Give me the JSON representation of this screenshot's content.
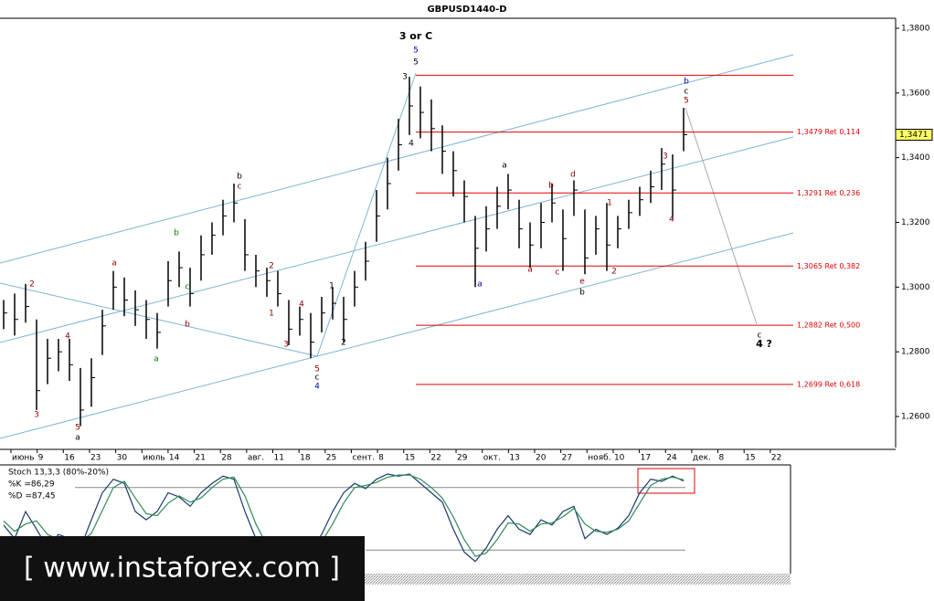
{
  "chart_data": {
    "type": "ohlc",
    "title": "GBPUSD1440-D",
    "x_labels": [
      "июнь",
      "9",
      "16",
      "23",
      "30",
      "июль",
      "14",
      "21",
      "28",
      "авг.",
      "11",
      "18",
      "25",
      "сент.",
      "8",
      "15",
      "22",
      "29",
      "окт.",
      "13",
      "20",
      "27",
      "нояб.",
      "10",
      "17",
      "24",
      "дек.",
      "8",
      "15",
      "22"
    ],
    "high": [
      1.296,
      1.298,
      1.301,
      1.29,
      1.284,
      1.284,
      1.284,
      1.275,
      1.278,
      1.293,
      1.305,
      1.303,
      1.299,
      1.296,
      1.292,
      1.308,
      1.311,
      1.306,
      1.316,
      1.32,
      1.327,
      1.332,
      1.321,
      1.31,
      1.306,
      1.305,
      1.296,
      1.294,
      1.292,
      1.297,
      1.3,
      1.297,
      1.305,
      1.314,
      1.33,
      1.34,
      1.352,
      1.365,
      1.362,
      1.358,
      1.35,
      1.342,
      1.333,
      1.322,
      1.325,
      1.331,
      1.335,
      1.327,
      1.32,
      1.326,
      1.332,
      1.324,
      1.333,
      1.324,
      1.322,
      1.326,
      1.322,
      1.327,
      1.331,
      1.336,
      1.343,
      1.341,
      1.3554
    ],
    "low": [
      1.287,
      1.285,
      1.289,
      1.262,
      1.27,
      1.274,
      1.271,
      1.257,
      1.263,
      1.279,
      1.293,
      1.291,
      1.288,
      1.284,
      1.281,
      1.294,
      1.3,
      1.294,
      1.302,
      1.31,
      1.316,
      1.32,
      1.305,
      1.3,
      1.297,
      1.294,
      1.282,
      1.285,
      1.278,
      1.286,
      1.29,
      1.283,
      1.294,
      1.302,
      1.314,
      1.324,
      1.336,
      1.347,
      1.346,
      1.342,
      1.335,
      1.328,
      1.32,
      1.3,
      1.311,
      1.318,
      1.324,
      1.312,
      1.306,
      1.312,
      1.32,
      1.305,
      1.322,
      1.304,
      1.31,
      1.305,
      1.312,
      1.318,
      1.322,
      1.326,
      1.33,
      1.321,
      1.342
    ],
    "close": [
      1.292,
      1.29,
      1.294,
      1.268,
      1.278,
      1.28,
      1.276,
      1.262,
      1.272,
      1.288,
      1.3,
      1.296,
      1.293,
      1.29,
      1.286,
      1.302,
      1.306,
      1.298,
      1.31,
      1.316,
      1.322,
      1.326,
      1.31,
      1.305,
      1.302,
      1.298,
      1.287,
      1.29,
      1.283,
      1.292,
      1.295,
      1.29,
      1.3,
      1.308,
      1.322,
      1.332,
      1.344,
      1.356,
      1.354,
      1.349,
      1.342,
      1.336,
      1.328,
      1.312,
      1.318,
      1.325,
      1.33,
      1.318,
      1.313,
      1.32,
      1.326,
      1.315,
      1.33,
      1.309,
      1.318,
      1.313,
      1.318,
      1.323,
      1.327,
      1.331,
      1.338,
      1.33,
      1.3471
    ],
    "last_price_label": "1,3471",
    "ylim": [
      1.2504,
      1.3831
    ],
    "yticks": [
      {
        "value": 1.38,
        "label": "1,3800"
      },
      {
        "value": 1.36,
        "label": "1,3600"
      },
      {
        "value": 1.34,
        "label": "1,3400"
      },
      {
        "value": 1.32,
        "label": "1,3200"
      },
      {
        "value": 1.3,
        "label": "1,3000"
      },
      {
        "value": 1.28,
        "label": "1,2800"
      },
      {
        "value": 1.26,
        "label": "1,2600"
      }
    ],
    "levels": [
      {
        "value": 1.3655,
        "label": null
      },
      {
        "value": 1.3479,
        "label": "1,3479 Ret 0,114"
      },
      {
        "value": 1.3291,
        "label": "1,3291 Ret 0,236"
      },
      {
        "value": 1.3065,
        "label": "1,3065 Ret 0,382"
      },
      {
        "value": 1.2882,
        "label": "1,2882 Ret 0,500"
      },
      {
        "value": 1.2699,
        "label": "1,2699 Ret 0,618"
      }
    ],
    "level_color": "#e00000",
    "annotations": [
      {
        "text": "3 or C",
        "color": "#000000"
      },
      {
        "text": "5",
        "color": "#0000cc"
      },
      {
        "text": "5",
        "color": "#000000"
      },
      {
        "text": "3",
        "color": "#000000"
      },
      {
        "text": "4",
        "color": "#000000"
      },
      {
        "text": "2",
        "color": "#8b0000"
      },
      {
        "text": "3",
        "color": "#8b0000"
      },
      {
        "text": "4",
        "color": "#8b0000"
      },
      {
        "text": "5",
        "color": "#8b0000"
      },
      {
        "text": "a",
        "color": "#000000"
      },
      {
        "text": "a",
        "color": "#8b0000"
      },
      {
        "text": "b",
        "color": "#008000"
      },
      {
        "text": "c",
        "color": "#008000"
      },
      {
        "text": "b",
        "color": "#8b0000"
      },
      {
        "text": "a",
        "color": "#008000"
      },
      {
        "text": "b",
        "color": "#000000"
      },
      {
        "text": "c",
        "color": "#8b0000"
      },
      {
        "text": "2",
        "color": "#8b0000"
      },
      {
        "text": "1",
        "color": "#8b0000"
      },
      {
        "text": "3",
        "color": "#8b0000"
      },
      {
        "text": "4",
        "color": "#8b0000"
      },
      {
        "text": "5",
        "color": "#8b0000"
      },
      {
        "text": "c",
        "color": "#000000"
      },
      {
        "text": "4",
        "color": "#0000cc"
      },
      {
        "text": "1",
        "color": "#000000"
      },
      {
        "text": "2",
        "color": "#000000"
      },
      {
        "text": "a",
        "color": "#000000"
      },
      {
        "text": "a",
        "color": "#0000cc"
      },
      {
        "text": "a",
        "color": "#8b0000"
      },
      {
        "text": "b",
        "color": "#8b0000"
      },
      {
        "text": "c",
        "color": "#8b0000"
      },
      {
        "text": "d",
        "color": "#8b0000"
      },
      {
        "text": "e",
        "color": "#8b0000"
      },
      {
        "text": "b",
        "color": "#000000"
      },
      {
        "text": "1",
        "color": "#8b0000"
      },
      {
        "text": "2",
        "color": "#8b0000"
      },
      {
        "text": "3",
        "color": "#8b0000"
      },
      {
        "text": "4",
        "color": "#8b0000"
      },
      {
        "text": "b",
        "color": "#0000cc"
      },
      {
        "text": "c",
        "color": "#000000"
      },
      {
        "text": "5",
        "color": "#8b0000"
      },
      {
        "text": "c",
        "color": "#000000"
      },
      {
        "text": "4 ?",
        "color": "#000000"
      }
    ],
    "stochastic": {
      "title": "Stoch 13,3,3 (80%-20%)",
      "k_label": "%K =86,29",
      "d_label": "%D =87,45",
      "ylim": [
        0,
        100
      ],
      "levels": [
        80,
        20
      ],
      "k": [
        44,
        31,
        57,
        40,
        22,
        35,
        31,
        22,
        49,
        75,
        88,
        84,
        57,
        49,
        57,
        75,
        71,
        62,
        75,
        84,
        91,
        88,
        57,
        31,
        18,
        13,
        9,
        13,
        22,
        35,
        57,
        75,
        84,
        79,
        88,
        93,
        91,
        93,
        84,
        75,
        66,
        40,
        18,
        9,
        22,
        40,
        53,
        40,
        35,
        49,
        44,
        57,
        62,
        31,
        40,
        35,
        41,
        53,
        75,
        88,
        86,
        91,
        86.29
      ],
      "d": [
        48,
        38,
        45,
        48,
        35,
        30,
        32,
        28,
        36,
        58,
        80,
        86,
        70,
        55,
        53,
        65,
        72,
        66,
        70,
        80,
        88,
        90,
        72,
        45,
        25,
        16,
        11,
        12,
        18,
        28,
        45,
        65,
        80,
        82,
        85,
        90,
        92,
        92,
        88,
        80,
        70,
        52,
        30,
        14,
        17,
        30,
        46,
        45,
        38,
        45,
        46,
        52,
        60,
        45,
        38,
        37,
        40,
        48,
        65,
        82,
        88,
        90,
        87.45
      ],
      "k_color": "#1a3a6b",
      "d_color": "#2e8b57"
    },
    "logo": "[  www.instaforex.com ]"
  }
}
